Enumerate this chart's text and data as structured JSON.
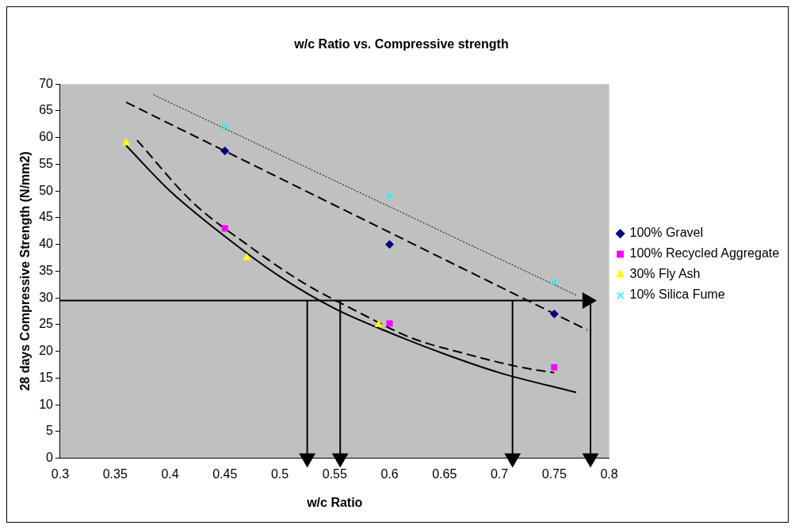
{
  "chart_data": {
    "type": "scatter",
    "title": "w/c Ratio vs. Compressive strength",
    "xlabel": "w/c Ratio",
    "ylabel": "28 days Compressive Strength (N/mm2)",
    "xlim": [
      0.3,
      0.8
    ],
    "xticks": [
      0.3,
      0.35,
      0.4,
      0.45,
      0.5,
      0.55,
      0.6,
      0.65,
      0.7,
      0.75,
      0.8
    ],
    "ylim": [
      0,
      70
    ],
    "yticks": [
      0,
      5,
      10,
      15,
      20,
      25,
      30,
      35,
      40,
      45,
      50,
      55,
      60,
      65,
      70
    ],
    "grid": false,
    "legend": "right",
    "series": [
      {
        "name": "100% Gravel",
        "color": "#000080",
        "marker": "diamond",
        "x": [
          0.45,
          0.6,
          0.75
        ],
        "values": [
          57.5,
          40,
          27
        ]
      },
      {
        "name": "100% Recycled Aggregate",
        "color": "#ff00ff",
        "marker": "square",
        "x": [
          0.45,
          0.6,
          0.75
        ],
        "values": [
          43,
          25.2,
          17
        ]
      },
      {
        "name": "30% Fly Ash",
        "color": "#ffff00",
        "marker": "triangle",
        "x": [
          0.36,
          0.47,
          0.59
        ],
        "values": [
          59,
          37.5,
          25
        ]
      },
      {
        "name": "10% Silica Fume",
        "color": "#00ffff",
        "marker": "cross",
        "x": [
          0.45,
          0.6,
          0.75
        ],
        "values": [
          62,
          49,
          33
        ]
      },
      {
        "type": "line",
        "color": "#000000",
        "line_style": "dashed",
        "marker": "none",
        "x": [
          0.36,
          0.78
        ],
        "values": [
          66.6,
          24
        ]
      },
      {
        "type": "line",
        "color": "#000000",
        "line_style": "dotted",
        "marker": "none",
        "x": [
          0.385,
          0.77
        ],
        "values": [
          68,
          30.5
        ]
      },
      {
        "type": "line",
        "color": "#000000",
        "line_style": "dashed",
        "marker": "none",
        "x": [
          0.37,
          0.42,
          0.47,
          0.52,
          0.57,
          0.62,
          0.67,
          0.72,
          0.75
        ],
        "values": [
          59.5,
          48,
          40,
          33,
          27.5,
          22.5,
          19.5,
          17,
          16
        ]
      },
      {
        "type": "line",
        "color": "#000000",
        "line_style": "solid",
        "marker": "none",
        "x": [
          0.36,
          0.4,
          0.45,
          0.5,
          0.55,
          0.6,
          0.65,
          0.7,
          0.77
        ],
        "values": [
          58.5,
          50,
          41.5,
          34,
          28,
          23.5,
          19.5,
          16,
          12.3
        ]
      },
      {
        "type": "line",
        "color": "#000000",
        "line_style": "solid",
        "marker": "triangle",
        "x": [
          0.3,
          0.78
        ],
        "values": [
          29.5,
          29.5
        ]
      },
      {
        "type": "line",
        "color": "#000000",
        "line_style": "solid",
        "marker": "triangle",
        "x": [
          0.525,
          0.525
        ],
        "values": [
          29.5,
          0
        ]
      },
      {
        "type": "line",
        "color": "#000000",
        "line_style": "solid",
        "marker": "triangle",
        "x": [
          0.555,
          0.555
        ],
        "values": [
          29.5,
          0
        ]
      },
      {
        "type": "line",
        "color": "#000000",
        "line_style": "solid",
        "marker": "triangle",
        "x": [
          0.712,
          0.712
        ],
        "values": [
          29.5,
          0
        ]
      },
      {
        "type": "line",
        "color": "#000000",
        "line_style": "solid",
        "marker": "triangle",
        "x": [
          0.783,
          0.783
        ],
        "values": [
          29.5,
          0
        ]
      }
    ]
  }
}
